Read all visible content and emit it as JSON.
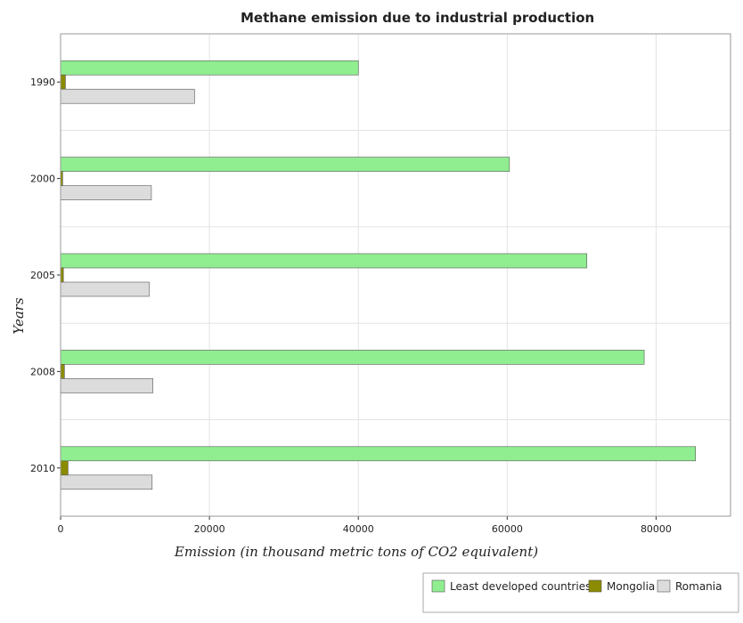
{
  "chart_data": {
    "type": "bar",
    "orientation": "horizontal",
    "title": "Methane emission due to industrial production",
    "xlabel": "Emission (in thousand metric tons of CO2 equivalent)",
    "ylabel": "Years",
    "categories": [
      "1990",
      "2000",
      "2005",
      "2008",
      "2010"
    ],
    "xlim": [
      0,
      90000
    ],
    "xticks": [
      0,
      20000,
      40000,
      60000,
      80000
    ],
    "grid": true,
    "legend_position": "bottom-right",
    "series": [
      {
        "name": "Least developed countries",
        "color": "#90ee90",
        "values": [
          40000,
          60300,
          70700,
          78400,
          85300
        ]
      },
      {
        "name": "Mongolia",
        "color": "#8b8b00",
        "values": [
          650,
          280,
          380,
          520,
          1000
        ]
      },
      {
        "name": "Romania",
        "color": "#dcdcdc",
        "values": [
          18000,
          12200,
          11900,
          12400,
          12300
        ]
      }
    ]
  }
}
